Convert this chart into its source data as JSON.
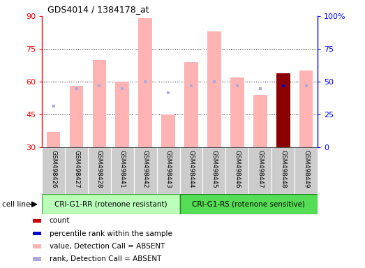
{
  "title": "GDS4014 / 1384178_at",
  "samples": [
    "GSM498426",
    "GSM498427",
    "GSM498428",
    "GSM498441",
    "GSM498442",
    "GSM498443",
    "GSM498444",
    "GSM498445",
    "GSM498446",
    "GSM498447",
    "GSM498448",
    "GSM498449"
  ],
  "bar_values": [
    37,
    58,
    70,
    60,
    89,
    45,
    69,
    83,
    62,
    54,
    64,
    65
  ],
  "rank_values": [
    49,
    57,
    58,
    57,
    60,
    55,
    58,
    60,
    58,
    57,
    58,
    58
  ],
  "bar_colors": [
    "#ffb3b3",
    "#ffb3b3",
    "#ffb3b3",
    "#ffb3b3",
    "#ffb3b3",
    "#ffb3b3",
    "#ffb3b3",
    "#ffb3b3",
    "#ffb3b3",
    "#ffb3b3",
    "#8b0000",
    "#ffb3b3"
  ],
  "rank_colors": [
    "#aaaadd",
    "#aaaadd",
    "#aaaadd",
    "#aaaadd",
    "#aaaadd",
    "#aaaadd",
    "#aaaadd",
    "#aaaadd",
    "#aaaadd",
    "#aaaadd",
    "#0000cc",
    "#aaaadd"
  ],
  "ymin": 30,
  "ymax": 90,
  "y2min": 0,
  "y2max": 100,
  "yticks": [
    30,
    45,
    60,
    75,
    90
  ],
  "y2ticks": [
    0,
    25,
    50,
    75,
    100
  ],
  "group1_label": "CRI-G1-RR (rotenone resistant)",
  "group2_label": "CRI-G1-RS (rotenone sensitive)",
  "group1_count": 6,
  "group2_count": 6,
  "cell_line_label": "cell line",
  "legend_items": [
    {
      "color": "#cc0000",
      "label": "count"
    },
    {
      "color": "#0000cc",
      "label": "percentile rank within the sample"
    },
    {
      "color": "#ffb3b3",
      "label": "value, Detection Call = ABSENT"
    },
    {
      "color": "#aaaadd",
      "label": "rank, Detection Call = ABSENT"
    }
  ],
  "bar_width": 0.6,
  "grid_lines": [
    45,
    60,
    75
  ],
  "group1_bg": "#bbffbb",
  "group2_bg": "#55dd55",
  "tick_bg": "#cccccc"
}
